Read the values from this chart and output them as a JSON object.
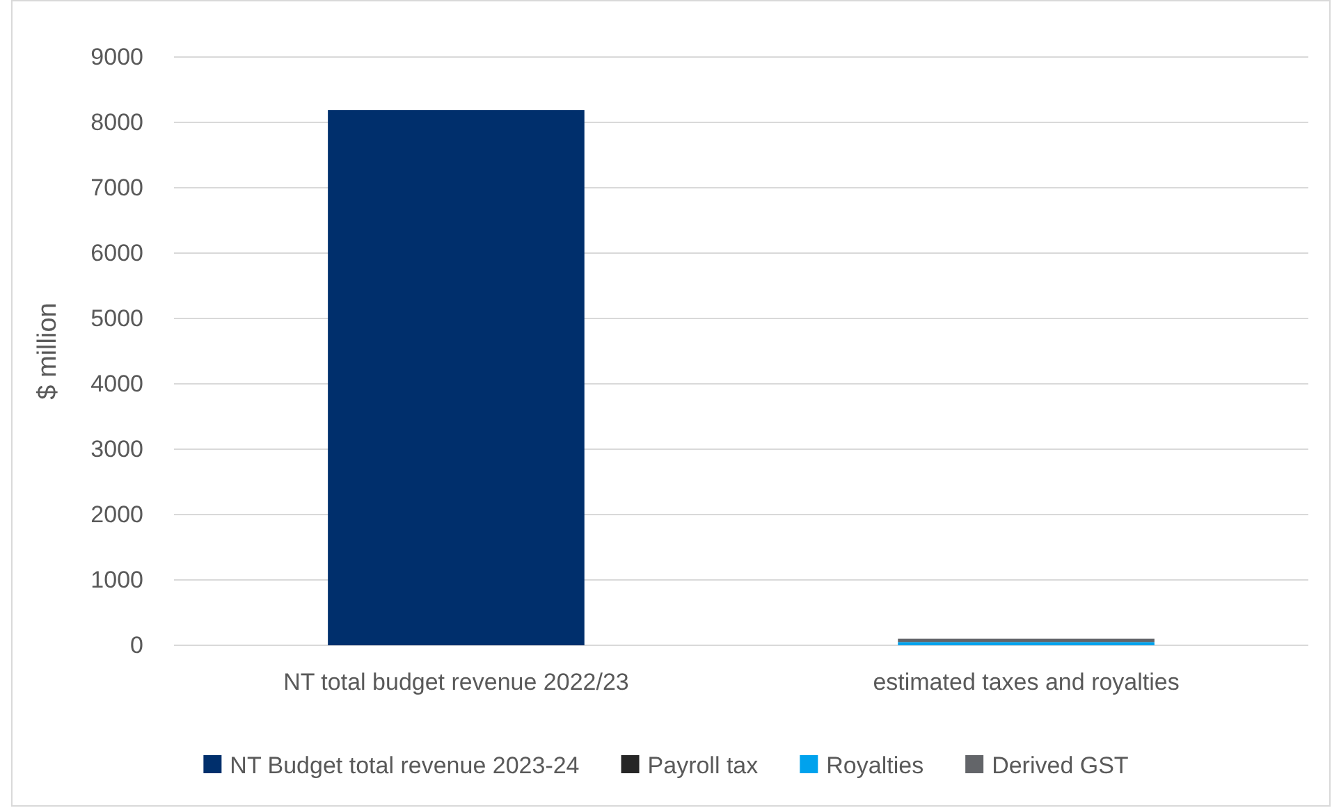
{
  "chart_data": {
    "type": "bar",
    "stacked": true,
    "ylabel": "$ million",
    "categories": [
      "NT total budget revenue 2022/23",
      "estimated taxes and royalties"
    ],
    "series": [
      {
        "name": "NT Budget total revenue 2023-24",
        "color": "#002f6c",
        "values": [
          8190,
          null
        ]
      },
      {
        "name": "Payroll tax",
        "color": "#262626",
        "values": [
          null,
          null
        ]
      },
      {
        "name": "Royalties",
        "color": "#00a2ed",
        "values": [
          null,
          50
        ]
      },
      {
        "name": "Derived GST",
        "color": "#636569",
        "values": [
          null,
          50
        ]
      }
    ],
    "ylim": [
      0,
      9000
    ],
    "yticks": [
      0,
      1000,
      2000,
      3000,
      4000,
      5000,
      6000,
      7000,
      8000,
      9000
    ],
    "grid": "y",
    "legend": "bottom"
  }
}
